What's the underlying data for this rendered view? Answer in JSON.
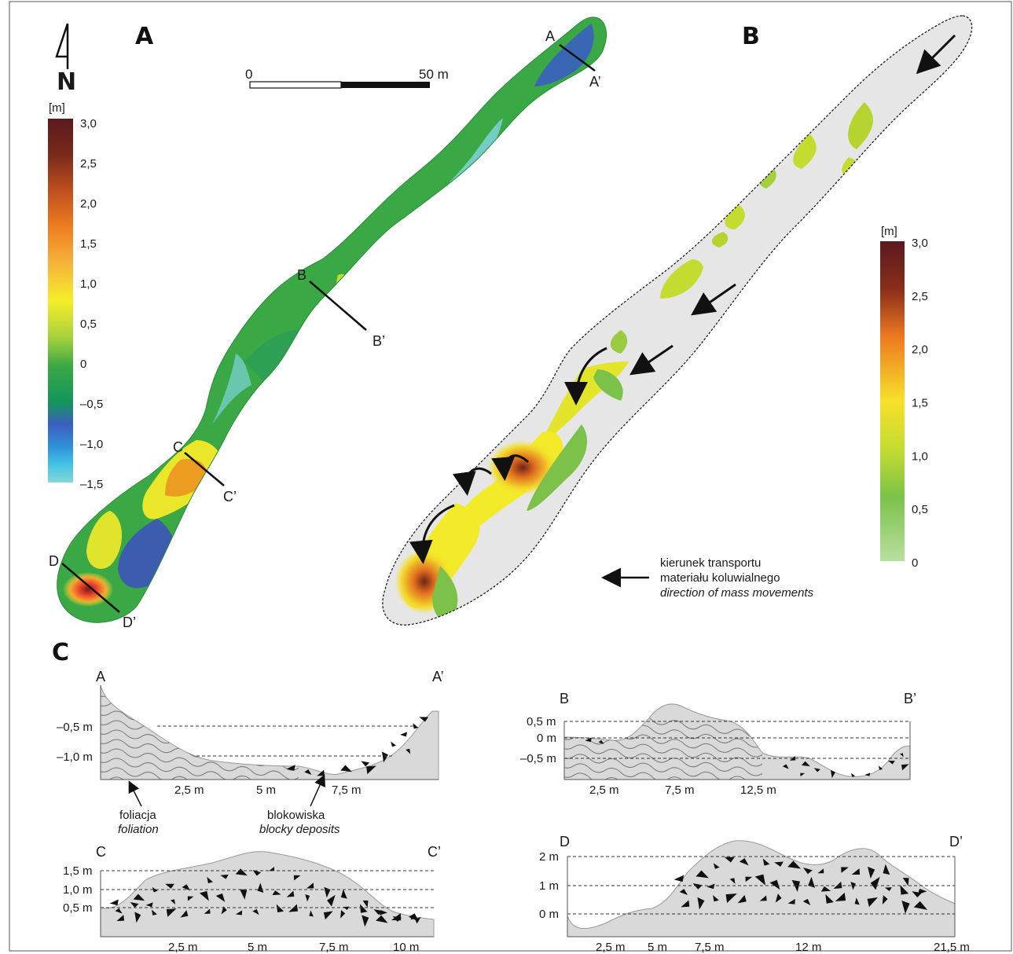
{
  "panels": {
    "a": {
      "letter": "A",
      "north": "N",
      "scale": {
        "start": "0",
        "end": "50 m"
      },
      "legend": {
        "unit": "[m]",
        "ticks": [
          "3,0",
          "2,5",
          "2,0",
          "1,5",
          "1,0",
          "0,5",
          "0",
          "–0,5",
          "–1,0",
          "–1,5"
        ]
      },
      "sections": [
        {
          "start": "A",
          "end": "A’"
        },
        {
          "start": "B",
          "end": "B’"
        },
        {
          "start": "C",
          "end": "C’"
        },
        {
          "start": "D",
          "end": "D’"
        }
      ]
    },
    "b": {
      "letter": "B",
      "legend": {
        "unit": "[m]",
        "ticks": [
          "3,0",
          "2,5",
          "2,0",
          "1,5",
          "1,0",
          "0,5",
          "0"
        ]
      },
      "arrow_legend": {
        "line1": "kierunek transportu",
        "line2": "materiału koluwialnego",
        "line3": "direction of mass movements"
      }
    },
    "c": {
      "letter": "C",
      "profiles": {
        "aa": {
          "start": "A",
          "end": "A’",
          "y_ticks": [
            "–0,5 m",
            "–1,0 m"
          ],
          "x_ticks": [
            "2,5 m",
            "5 m",
            "7,5 m"
          ]
        },
        "bb": {
          "start": "B",
          "end": "B’",
          "y_ticks": [
            "0,5 m",
            "0 m",
            "–0,5 m"
          ],
          "x_ticks": [
            "2,5 m",
            "7,5 m",
            "12,5 m"
          ]
        },
        "cc": {
          "start": "C",
          "end": "C’",
          "y_ticks": [
            "1,5 m",
            "1,0 m",
            "0,5 m"
          ],
          "x_ticks": [
            "2,5 m",
            "5 m",
            "7,5 m",
            "10 m"
          ]
        },
        "dd": {
          "start": "D",
          "end": "D’",
          "y_ticks": [
            "2 m",
            "1 m",
            "0 m"
          ],
          "x_ticks": [
            "2,5 m",
            "5 m",
            "7,5 m",
            "12 m",
            "21,5 m"
          ]
        }
      },
      "annotations": {
        "foliation_pl": "foliacja",
        "foliation_en": "foliation",
        "blocky_pl": "blokowiska",
        "blocky_en": "blocky deposits"
      }
    }
  },
  "colors": {
    "rock_fill": "#d9d9d9",
    "green": "#3aa845",
    "blue": "#3d4fc0",
    "cyan": "#7fd3da",
    "yellow": "#f3ea29",
    "orange": "#ee7c20",
    "brown": "#5e1d1d"
  }
}
